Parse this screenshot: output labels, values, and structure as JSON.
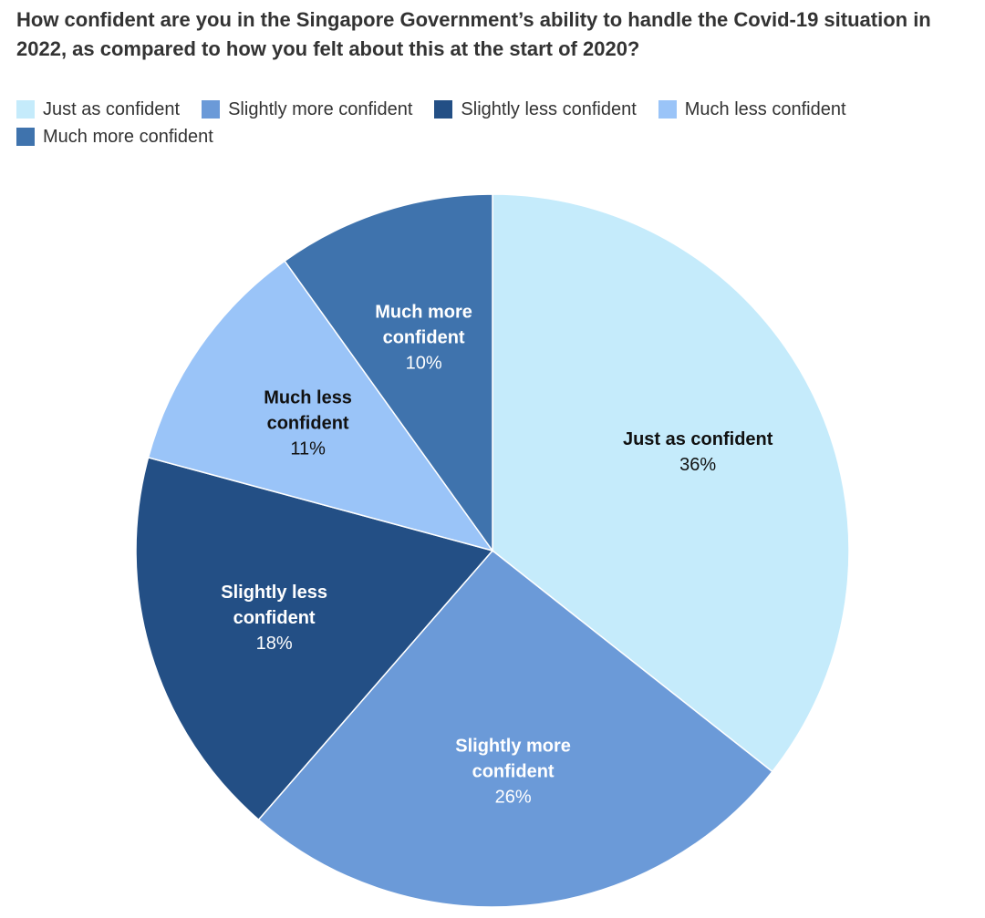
{
  "chart_data": {
    "type": "pie",
    "title": "How confident are you in the Singapore Government’s ability to handle the Covid-19 situation in 2022, as compared to how you felt about this at the start of 2020?",
    "legend_position": "top-left",
    "slices": [
      {
        "name": "Just as confident",
        "value": 36,
        "value_label": "36%",
        "label_lines": [
          "Just as confident"
        ],
        "color": "#c5ebfb",
        "label_color": "#111111"
      },
      {
        "name": "Slightly more confident",
        "value": 26,
        "value_label": "26%",
        "label_lines": [
          "Slightly more",
          "confident"
        ],
        "color": "#6b9ad8",
        "label_color": "#ffffff"
      },
      {
        "name": "Slightly less confident",
        "value": 18,
        "value_label": "18%",
        "label_lines": [
          "Slightly less",
          "confident"
        ],
        "color": "#234f85",
        "label_color": "#ffffff"
      },
      {
        "name": "Much less confident",
        "value": 11,
        "value_label": "11%",
        "label_lines": [
          "Much less",
          "confident"
        ],
        "color": "#9ac4f8",
        "label_color": "#111111"
      },
      {
        "name": "Much more confident",
        "value": 10,
        "value_label": "10%",
        "label_lines": [
          "Much more",
          "confident"
        ],
        "color": "#3f73ad",
        "label_color": "#ffffff"
      }
    ]
  }
}
